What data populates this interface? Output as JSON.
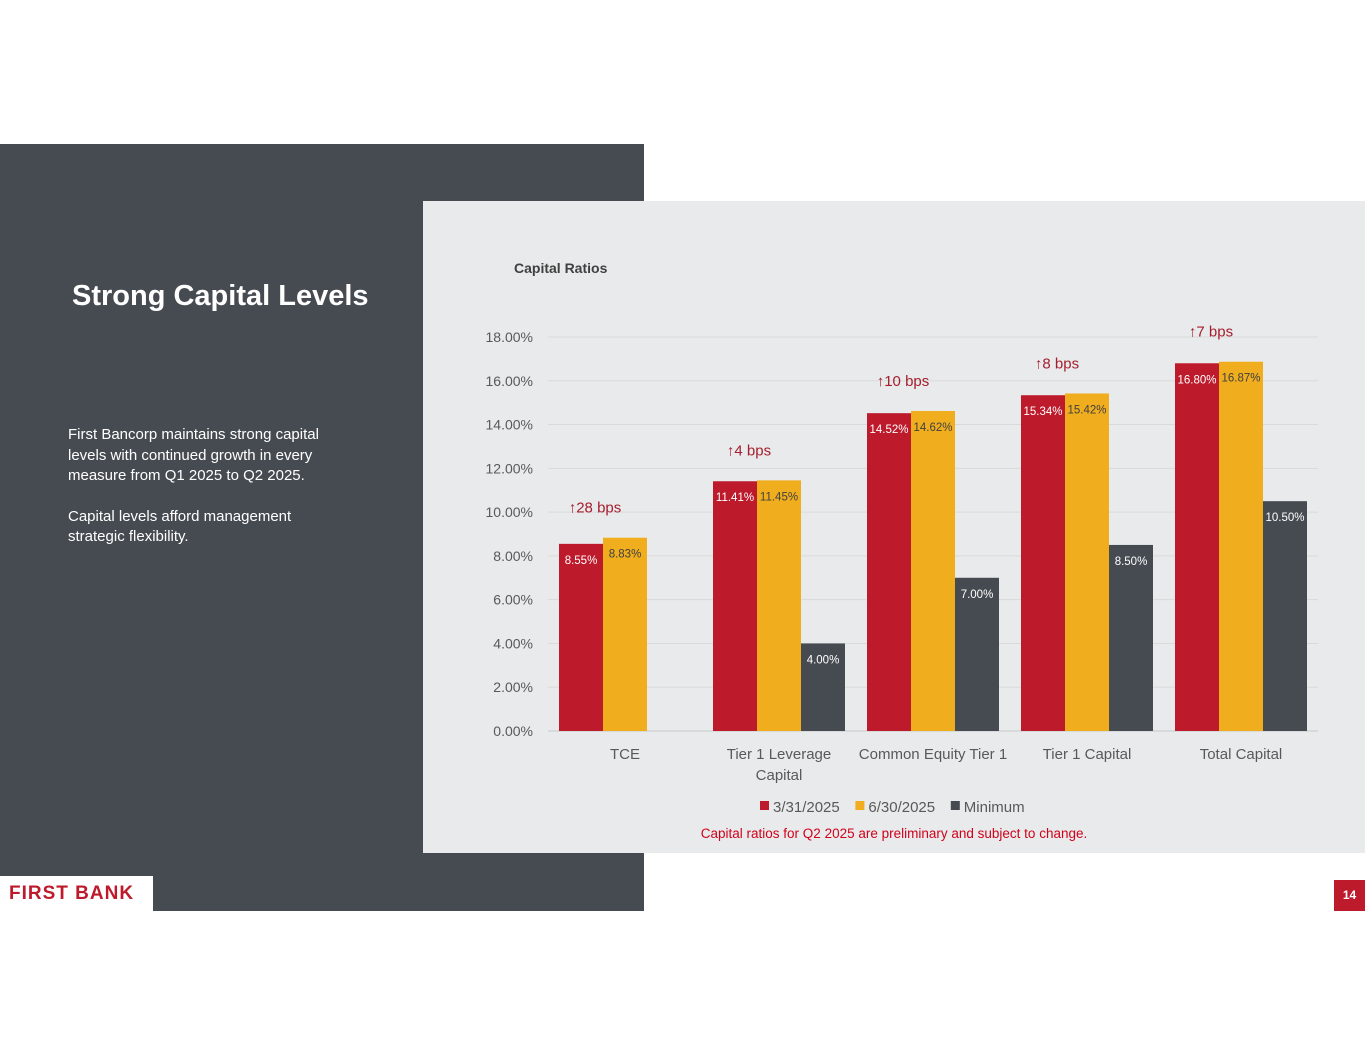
{
  "slide": {
    "title": "Strong Capital Levels",
    "paragraphs": [
      "First Bancorp maintains strong capital levels with continued growth in every measure from Q1 2025 to Q2 2025.",
      "Capital levels afford management strategic flexibility."
    ],
    "logo": "FIRST BANK",
    "page_number": "14"
  },
  "chart_data": {
    "type": "bar",
    "title": "Capital Ratios",
    "categories": [
      "TCE",
      "Tier 1 Leverage Capital",
      "Common Equity Tier 1",
      "Tier 1 Capital",
      "Total Capital"
    ],
    "category_lines": [
      [
        "TCE"
      ],
      [
        "Tier 1 Leverage",
        "Capital"
      ],
      [
        "Common Equity Tier 1"
      ],
      [
        "Tier 1 Capital"
      ],
      [
        "Total Capital"
      ]
    ],
    "series": [
      {
        "name": "3/31/2025",
        "color": "#bd1a2c",
        "label_color": "#ffffff",
        "values": [
          8.55,
          11.41,
          14.52,
          15.34,
          16.8
        ],
        "labels": [
          "8.55%",
          "11.41%",
          "14.52%",
          "15.34%",
          "16.80%"
        ]
      },
      {
        "name": "6/30/2025",
        "color": "#f0ae1e",
        "label_color": "#404040",
        "values": [
          8.83,
          11.45,
          14.62,
          15.42,
          16.87
        ],
        "labels": [
          "8.83%",
          "11.45%",
          "14.62%",
          "15.42%",
          "16.87%"
        ]
      },
      {
        "name": "Minimum",
        "color": "#464b52",
        "label_color": "#ffffff",
        "values": [
          null,
          4.0,
          7.0,
          8.5,
          10.5
        ],
        "labels": [
          null,
          "4.00%",
          "7.00%",
          "8.50%",
          "10.50%"
        ]
      }
    ],
    "annotations": [
      "28 bps",
      "4 bps",
      "10 bps",
      "8 bps",
      "7 bps"
    ],
    "annotation_arrow": "↑",
    "yticks": [
      "0.00%",
      "2.00%",
      "4.00%",
      "6.00%",
      "8.00%",
      "10.00%",
      "12.00%",
      "14.00%",
      "16.00%",
      "18.00%"
    ],
    "ylim": [
      0,
      18
    ],
    "grid": true,
    "legend": "bottom",
    "footnote": "Capital ratios for Q2 2025 are preliminary and subject to change."
  }
}
